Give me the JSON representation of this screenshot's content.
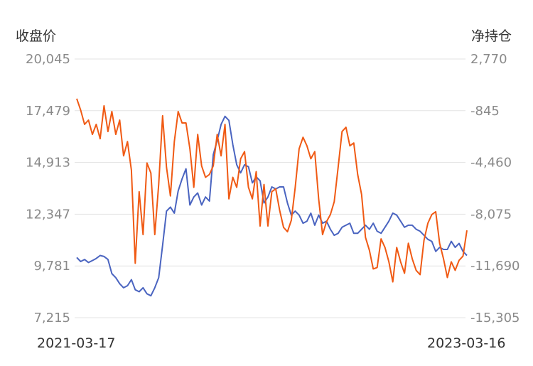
{
  "chart_data": {
    "type": "line",
    "left_axis": {
      "title": "收盘价",
      "ticks": [
        "20,045",
        "17,479",
        "14,913",
        "12,347",
        "9,781",
        "7,215"
      ],
      "range": [
        7215,
        20045
      ]
    },
    "right_axis": {
      "title": "净持仓",
      "ticks": [
        "2,770",
        "-845",
        "-4,460",
        "-8,075",
        "-11,690",
        "-15,305"
      ],
      "range": [
        -15305,
        2770
      ]
    },
    "x_range_labels": [
      "2021-03-17",
      "2023-03-16"
    ],
    "grid": true,
    "colors": {
      "close": "#4a64c0",
      "net_position": "#f05a14"
    },
    "series": [
      {
        "axis": "left",
        "color": "#4a64c0",
        "values": [
          10200,
          10000,
          10100,
          9950,
          10050,
          10150,
          10300,
          10250,
          10100,
          9400,
          9200,
          8900,
          8700,
          8800,
          9100,
          8600,
          8500,
          8700,
          8400,
          8300,
          8700,
          9200,
          10800,
          12500,
          12700,
          12400,
          13500,
          14100,
          14600,
          12800,
          13200,
          13400,
          12800,
          13200,
          13000,
          15300,
          16000,
          16800,
          17200,
          17000,
          15800,
          14800,
          14400,
          14800,
          14700,
          13900,
          14200,
          14000,
          12900,
          13200,
          13700,
          13600,
          13700,
          13700,
          12900,
          12300,
          12500,
          12300,
          11900,
          12000,
          12400,
          11800,
          12300,
          11900,
          12000,
          11600,
          11300,
          11400,
          11700,
          11800,
          11900,
          11400,
          11400,
          11600,
          11800,
          11600,
          11900,
          11500,
          11400,
          11700,
          12000,
          12400,
          12300,
          12000,
          11700,
          11800,
          11800,
          11600,
          11500,
          11300,
          11100,
          11000,
          10500,
          10700,
          10600,
          10600,
          11000,
          10700,
          10900,
          10500,
          10300
        ]
      },
      {
        "axis": "right",
        "color": "#f05a14",
        "values": [
          0,
          -800,
          -1800,
          -1500,
          -2500,
          -1800,
          -2800,
          -500,
          -2300,
          -900,
          -2500,
          -1500,
          -4000,
          -3000,
          -5000,
          -11500,
          -6500,
          -9500,
          -4500,
          -5200,
          -9500,
          -6000,
          -1200,
          -4800,
          -6800,
          -3000,
          -900,
          -1700,
          -1700,
          -3500,
          -6200,
          -2500,
          -4700,
          -5500,
          -5300,
          -4700,
          -2500,
          -4000,
          -1800,
          -7000,
          -5500,
          -6200,
          -4200,
          -3700,
          -6200,
          -7000,
          -5100,
          -8900,
          -6000,
          -8900,
          -6500,
          -6300,
          -7800,
          -9000,
          -9300,
          -8500,
          -6200,
          -3500,
          -2700,
          -3300,
          -4200,
          -3700,
          -7000,
          -9500,
          -8600,
          -8100,
          -7200,
          -4800,
          -2300,
          -2000,
          -3300,
          -3100,
          -5300,
          -6700,
          -9700,
          -10600,
          -11900,
          -11800,
          -9800,
          -10400,
          -11400,
          -12800,
          -10400,
          -11400,
          -12200,
          -10100,
          -11200,
          -12000,
          -12300,
          -9900,
          -8700,
          -8100,
          -7900,
          -10100,
          -11200,
          -12500,
          -11400,
          -12000,
          -11300,
          -11000,
          -9200
        ]
      }
    ]
  }
}
